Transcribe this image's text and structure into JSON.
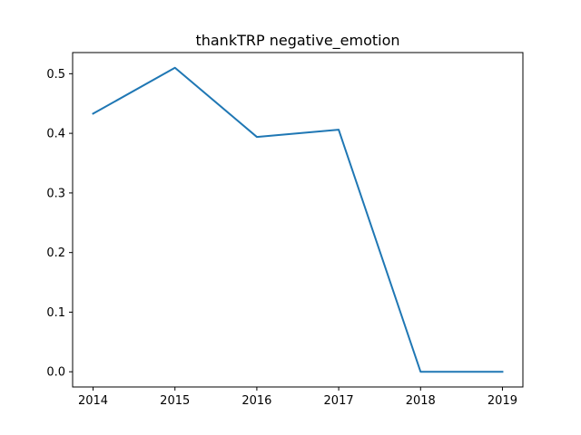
{
  "chart_data": {
    "type": "line",
    "title": "thankTRP negative_emotion",
    "xlabel": "",
    "ylabel": "",
    "x": [
      2014,
      2015,
      2016,
      2017,
      2018,
      2019
    ],
    "series": [
      {
        "values": [
          0.433,
          0.51,
          0.394,
          0.406,
          0.0,
          0.0
        ],
        "color": "#1f77b4"
      }
    ],
    "xticks": [
      "2014",
      "2015",
      "2016",
      "2017",
      "2018",
      "2019"
    ],
    "yticks": [
      "0.0",
      "0.1",
      "0.2",
      "0.3",
      "0.4",
      "0.5"
    ],
    "xlim": [
      2013.75,
      2019.25
    ],
    "ylim": [
      -0.0255,
      0.5355
    ],
    "grid": false,
    "legend": "none"
  }
}
